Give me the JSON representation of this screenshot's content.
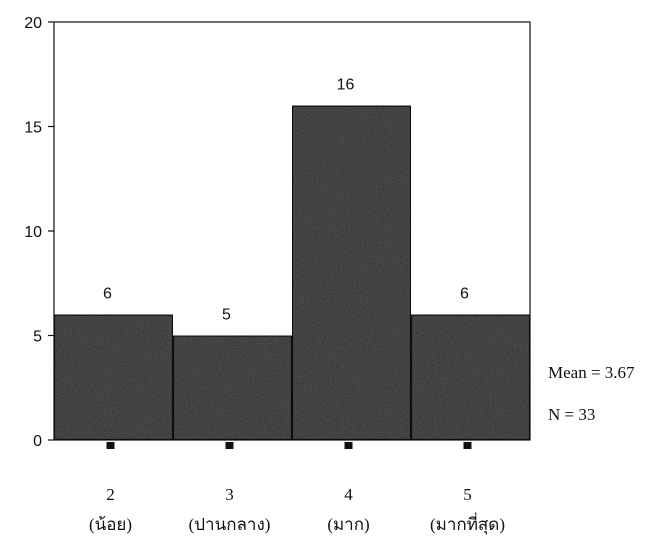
{
  "chart_data": {
    "type": "bar",
    "categories": [
      "2",
      "3",
      "4",
      "5"
    ],
    "category_sublabels": [
      "(น้อย)",
      "(ปานกลาง)",
      "(มาก)",
      "(มากที่สุด)"
    ],
    "values": [
      6,
      5,
      16,
      6
    ],
    "ylim": [
      0,
      20
    ],
    "yticks": [
      0,
      5,
      10,
      15,
      20
    ],
    "grid": false,
    "bar_color": "#555555",
    "annotations": {
      "mean": "Mean = 3.67",
      "n": "N = 33"
    }
  }
}
